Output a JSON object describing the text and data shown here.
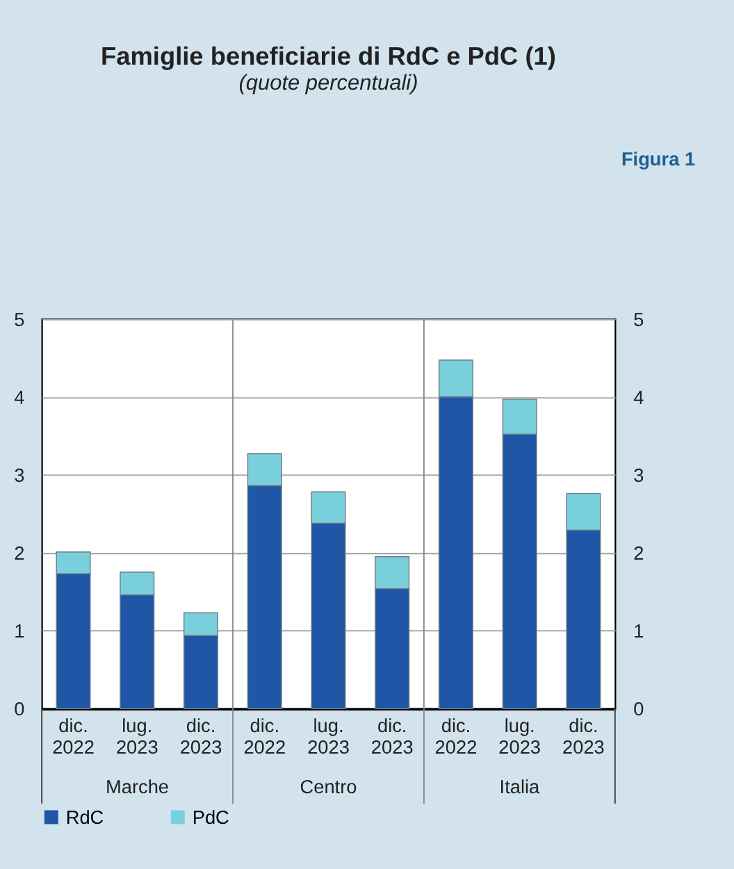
{
  "chart_data": {
    "type": "bar",
    "title": "Famiglie beneficiarie di RdC e PdC (1)",
    "subtitle": "(quote percentuali)",
    "categories": [
      "dic. 2022",
      "lug. 2023",
      "dic. 2023",
      "dic. 2022",
      "lug. 2023",
      "dic. 2023",
      "dic. 2022",
      "lug. 2023",
      "dic. 2023"
    ],
    "series": [
      {
        "name": "RdC",
        "color": "#1f56a5",
        "values": [
          1.73,
          1.46,
          0.94,
          2.86,
          2.38,
          1.54,
          4.0,
          3.52,
          2.29
        ]
      },
      {
        "name": "PdC",
        "color": "#79d0dc",
        "values": [
          0.28,
          0.29,
          0.29,
          0.41,
          0.4,
          0.41,
          0.47,
          0.45,
          0.47
        ]
      }
    ],
    "stacked": true,
    "ylim": [
      0,
      5
    ],
    "yticks": [
      0,
      1,
      2,
      3,
      4,
      5
    ],
    "y2lim": [
      0,
      5
    ],
    "y2ticks": [
      0,
      1,
      2,
      3,
      4,
      5
    ],
    "grid": "y",
    "legend": "bottom",
    "annotations": [
      "Marche",
      "Centro",
      "Italia",
      "Figura 1"
    ]
  }
}
